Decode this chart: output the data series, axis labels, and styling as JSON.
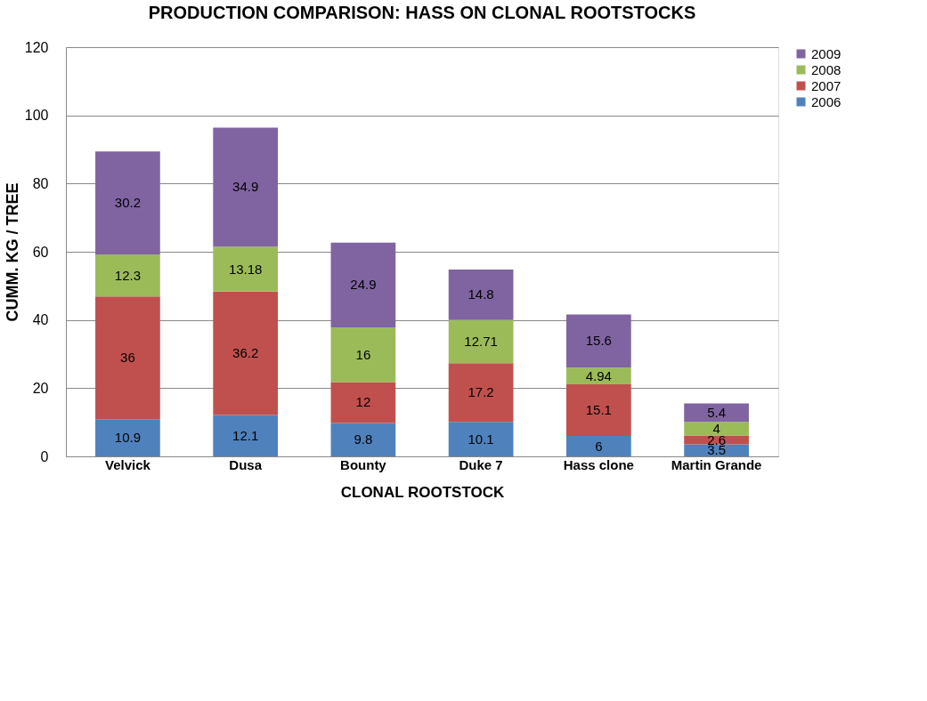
{
  "chart_data": {
    "type": "bar",
    "stacked": true,
    "title": "PRODUCTION COMPARISON: HASS ON CLONAL ROOTSTOCKS",
    "xlabel": "CLONAL ROOTSTOCK",
    "ylabel": "CUMM. KG / TREE",
    "categories": [
      "Velvick",
      "Dusa",
      "Bounty",
      "Duke 7",
      "Hass clone",
      "Martin Grande"
    ],
    "series": [
      {
        "name": "2006",
        "color": "#4f81bd",
        "values": [
          10.9,
          12.1,
          9.8,
          10.1,
          6,
          3.5
        ]
      },
      {
        "name": "2007",
        "color": "#c0504d",
        "values": [
          36,
          36.2,
          12,
          17.2,
          15.1,
          2.6
        ]
      },
      {
        "name": "2008",
        "color": "#9bbb59",
        "values": [
          12.3,
          13.18,
          16,
          12.71,
          4.94,
          4
        ]
      },
      {
        "name": "2009",
        "color": "#8064a2",
        "values": [
          30.2,
          34.9,
          24.9,
          14.8,
          15.6,
          5.4
        ]
      }
    ],
    "ylim": [
      0,
      120
    ],
    "yticks": [
      0,
      20,
      40,
      60,
      80,
      100,
      120
    ],
    "grid": "y",
    "legend": "right",
    "data_labels": true
  }
}
